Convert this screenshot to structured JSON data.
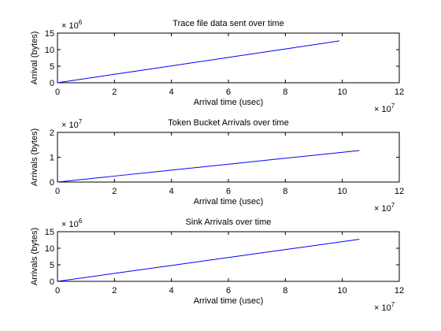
{
  "chart_data": [
    {
      "type": "line",
      "title": "Trace file data sent over time",
      "xlabel": "Arrival time (usec)",
      "ylabel": "Arrival (bytes)",
      "xlim": [
        0,
        12
      ],
      "ylim": [
        0,
        15
      ],
      "x_multiplier": {
        "base": "× 10",
        "exp": "7"
      },
      "y_multiplier": {
        "base": "× 10",
        "exp": "6"
      },
      "x_ticks": [
        "0",
        "2",
        "4",
        "6",
        "8",
        "10",
        "12"
      ],
      "y_ticks": [
        "0",
        "5",
        "10",
        "15"
      ],
      "grid": false,
      "series": [
        {
          "color": "#0000ff",
          "x": [
            0,
            2,
            4,
            6,
            8,
            9.9
          ],
          "y": [
            0,
            2.55,
            5.1,
            7.65,
            10.2,
            12.65
          ]
        }
      ]
    },
    {
      "type": "line",
      "title": "Token Bucket Arrivals over time",
      "xlabel": "Arrival time (usec)",
      "ylabel": "Arrivals (bytes)",
      "xlim": [
        0,
        12
      ],
      "ylim": [
        0,
        2
      ],
      "x_multiplier": {
        "base": "× 10",
        "exp": "7"
      },
      "y_multiplier": {
        "base": "× 10",
        "exp": "7"
      },
      "x_ticks": [
        "0",
        "2",
        "4",
        "6",
        "8",
        "10",
        "12"
      ],
      "y_ticks": [
        "0",
        "1",
        "2"
      ],
      "grid": false,
      "series": [
        {
          "color": "#0000ff",
          "x": [
            0,
            2,
            4,
            6,
            8,
            10.6
          ],
          "y": [
            0,
            0.24,
            0.48,
            0.72,
            0.96,
            1.27
          ]
        }
      ]
    },
    {
      "type": "line",
      "title": "Sink Arrivals over time",
      "xlabel": "Arrival time (usec)",
      "ylabel": "Arrivals (bytes)",
      "xlim": [
        0,
        12
      ],
      "ylim": [
        0,
        15
      ],
      "x_multiplier": {
        "base": "× 10",
        "exp": "7"
      },
      "y_multiplier": {
        "base": "× 10",
        "exp": "6"
      },
      "x_ticks": [
        "0",
        "2",
        "4",
        "6",
        "8",
        "10",
        "12"
      ],
      "y_ticks": [
        "0",
        "5",
        "10",
        "15"
      ],
      "grid": false,
      "series": [
        {
          "color": "#0000ff",
          "x": [
            0,
            2,
            4,
            6,
            8,
            10.6
          ],
          "y": [
            0,
            2.4,
            4.8,
            7.2,
            9.6,
            12.7
          ]
        }
      ]
    }
  ],
  "style": {
    "background": "#ffffff",
    "axis_color": "#000000",
    "line_color": "#0000ff"
  }
}
